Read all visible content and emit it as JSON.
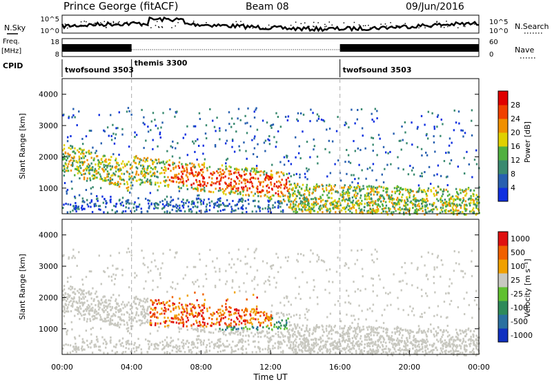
{
  "header": {
    "station": "Prince George (fitACF)",
    "beam": "Beam 08",
    "date": "09/Jun/2016"
  },
  "left_labels": {
    "nsky": "N.Sky",
    "freq_line1": "Freq.",
    "freq_line2": "[MHz]",
    "cpid": "CPID"
  },
  "right_labels": {
    "nsearch": "N.Search",
    "nave": "Nave"
  },
  "noise_axis": {
    "left_top": "10^5",
    "left_bottom": "10^0",
    "right_top": "10^5",
    "right_bottom": "10^0"
  },
  "freq_axis": {
    "left_top": "18",
    "left_bottom": "8",
    "right_top": "60",
    "right_bottom": "0"
  },
  "cpid_segments": [
    {
      "label": "twofsound 3503",
      "start_h": 0,
      "end_h": 4
    },
    {
      "label": "themis 3300",
      "start_h": 4,
      "end_h": 16
    },
    {
      "label": "twofsound 3503",
      "start_h": 16,
      "end_h": 24
    }
  ],
  "chart_data": [
    {
      "type": "heatmap",
      "name": "Power",
      "xlabel": "",
      "ylabel": "Slant Range [km]",
      "xlim_hours": [
        0,
        24
      ],
      "ylim_km": [
        180,
        4500
      ],
      "yticks": [
        "1000",
        "2000",
        "3000",
        "4000"
      ],
      "colorbar": {
        "label": "Power [dB]",
        "ticks": [
          "4",
          "8",
          "12",
          "16",
          "20",
          "24",
          "28"
        ],
        "colors": [
          "#1030e0",
          "#2860b0",
          "#3a8a70",
          "#50b040",
          "#e0d000",
          "#f09000",
          "#f04000",
          "#e00000"
        ]
      }
    },
    {
      "type": "heatmap",
      "name": "Velocity",
      "xlabel": "Time UT",
      "ylabel": "Slant Range [km]",
      "xlim_hours": [
        0,
        24
      ],
      "ylim_km": [
        180,
        4500
      ],
      "xticks": [
        "00:00",
        "04:00",
        "08:00",
        "12:00",
        "16:00",
        "20:00",
        "00:00"
      ],
      "yticks": [
        "1000",
        "2000",
        "3000",
        "4000"
      ],
      "colorbar": {
        "label": "Velocity [m s^-1]",
        "ticks": [
          "1000",
          "500",
          "100",
          "25",
          "-25",
          "-100",
          "-500",
          "-1000"
        ],
        "colors": [
          "#1030c0",
          "#2a70a0",
          "#2e8a5a",
          "#60c030",
          "#c8c8c0",
          "#f0a000",
          "#f06000",
          "#e01010"
        ]
      }
    }
  ]
}
